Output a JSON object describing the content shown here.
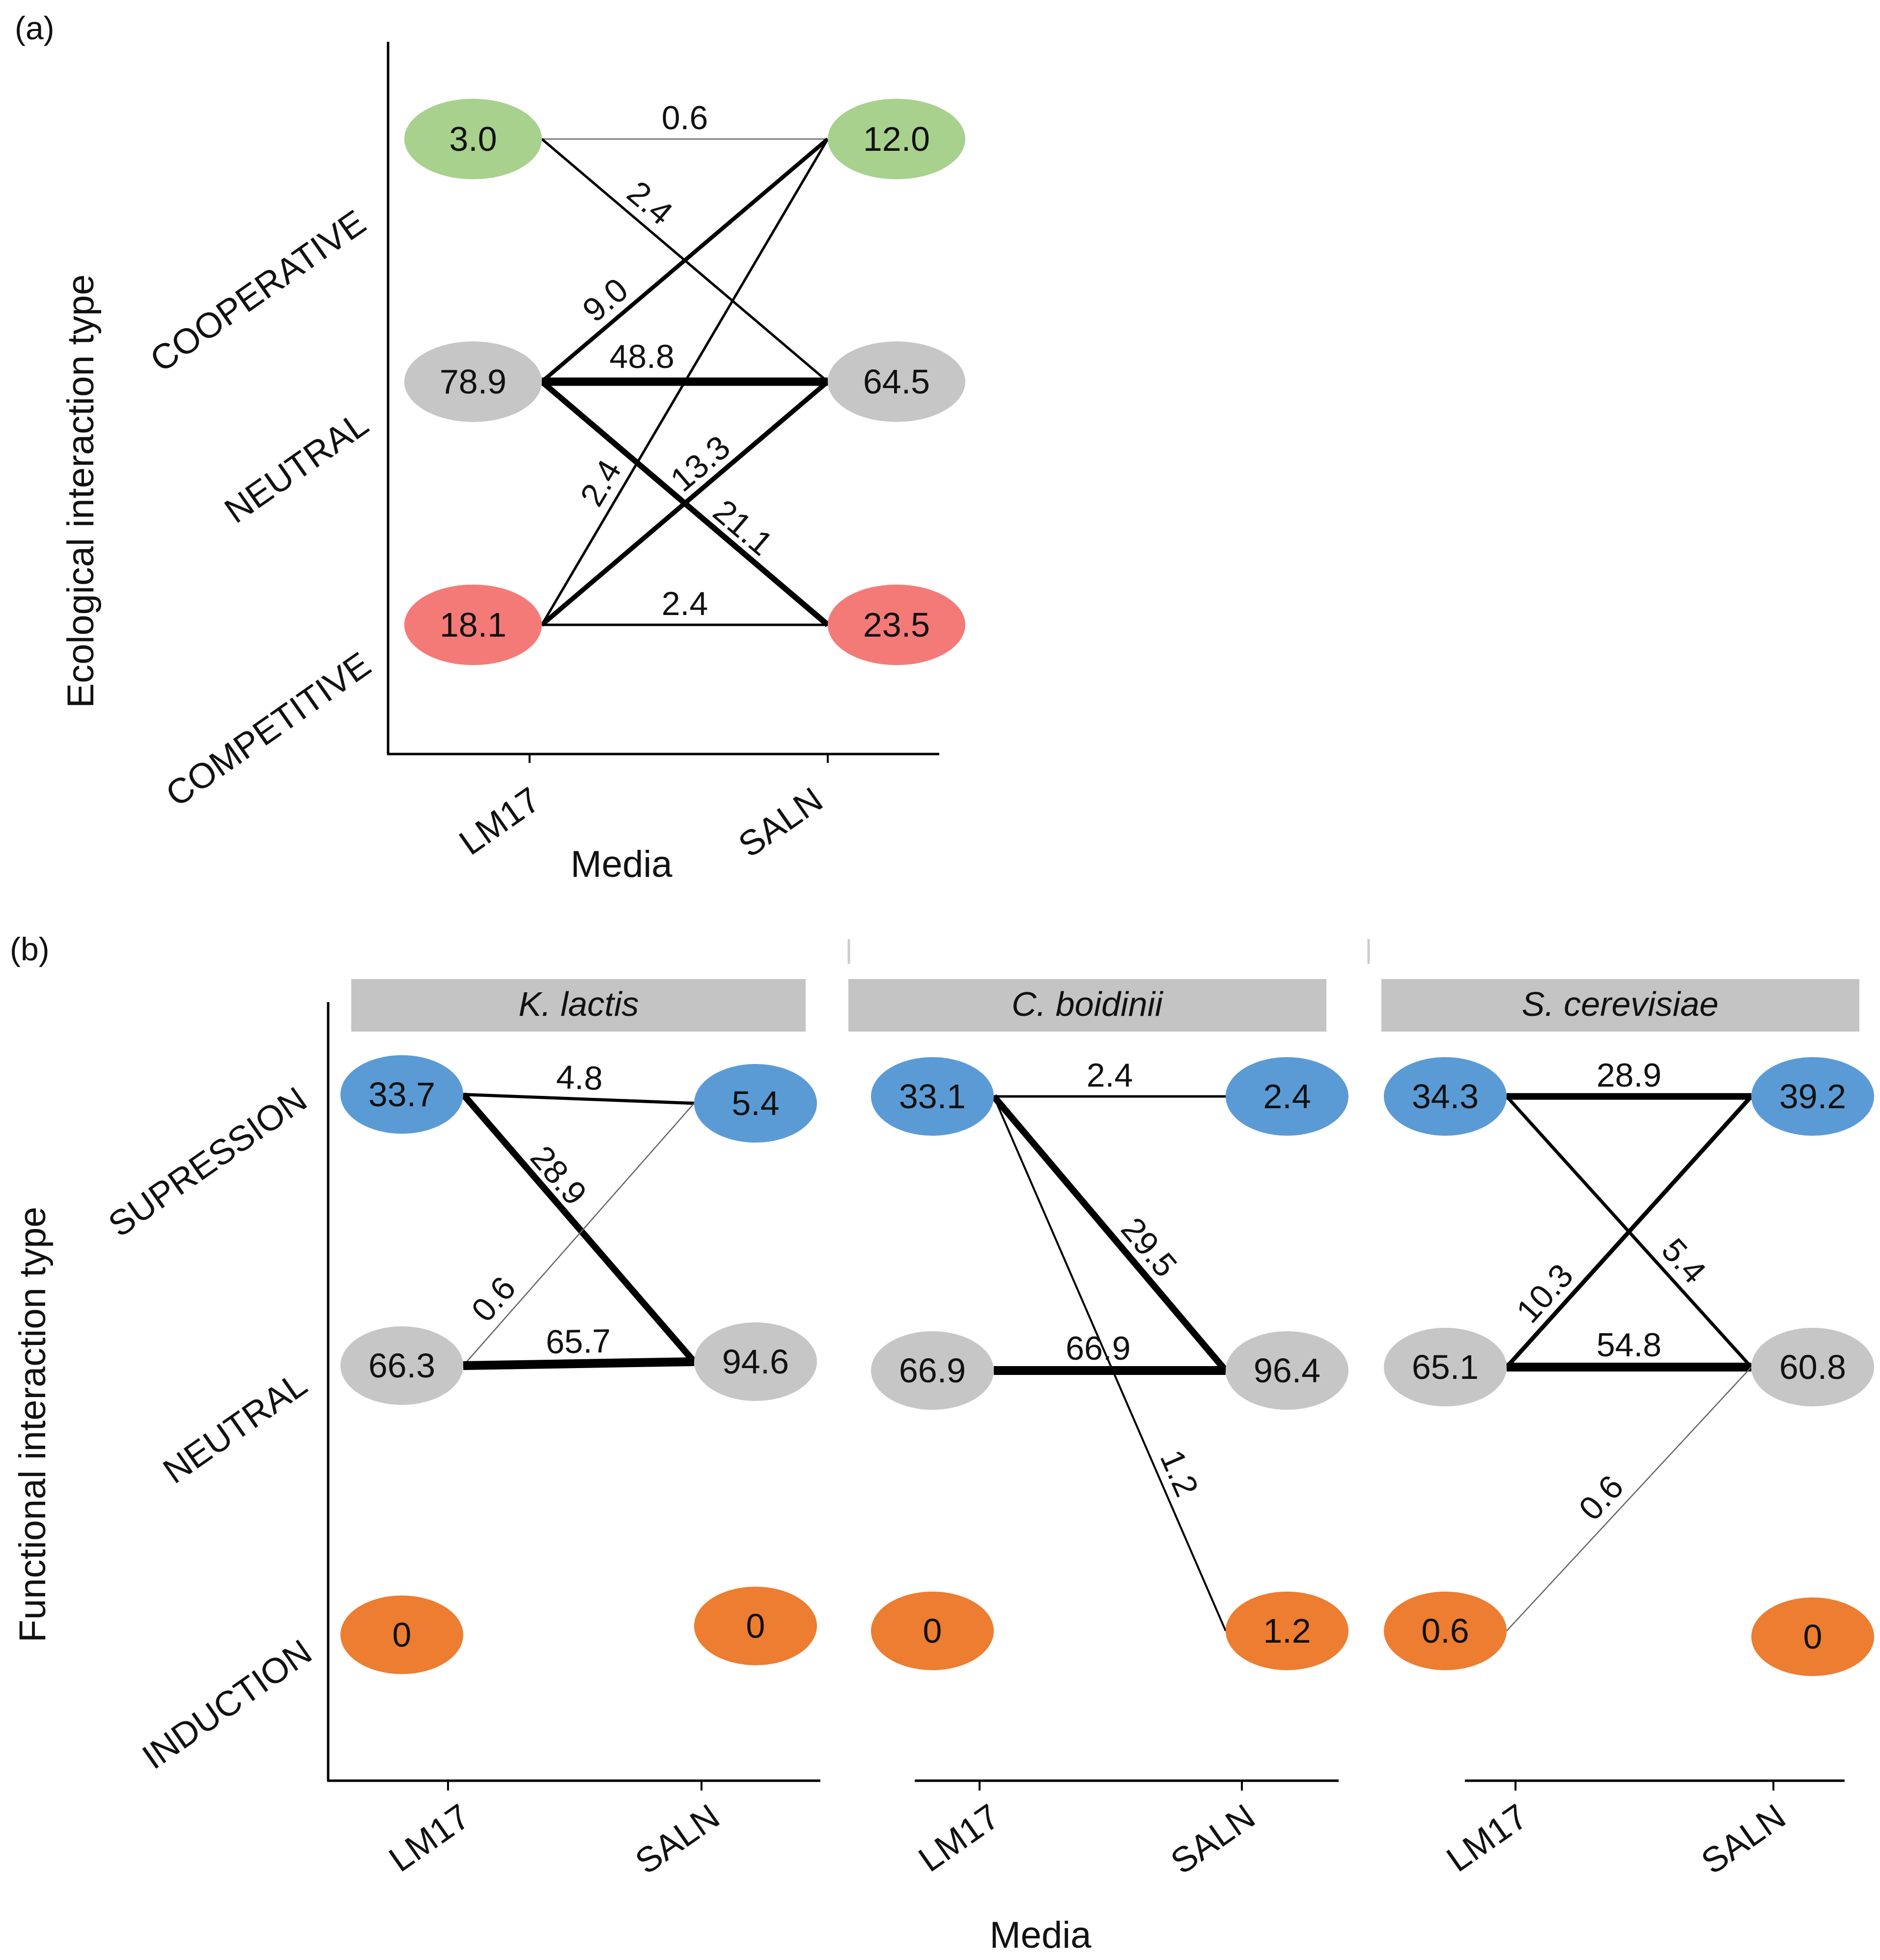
{
  "chart_data": [
    {
      "type": "alluvial-network",
      "panel_label": "(a)",
      "ylabel": "Ecological interaction type",
      "xlabel": "Media",
      "media": [
        "LM17",
        "SALN"
      ],
      "categories": [
        "COOPERATIVE",
        "NEUTRAL",
        "COMPETITIVE"
      ],
      "colors": {
        "COOPERATIVE": "#a8d18d",
        "NEUTRAL": "#c6c6c6",
        "COMPETITIVE": "#f47a78"
      },
      "nodes": {
        "LM17": {
          "COOPERATIVE": "3.0",
          "NEUTRAL": "78.9",
          "COMPETITIVE": "18.1"
        },
        "SALN": {
          "COOPERATIVE": "12.0",
          "NEUTRAL": "64.5",
          "COMPETITIVE": "23.5"
        }
      },
      "flows": [
        {
          "from": "COOPERATIVE",
          "to": "COOPERATIVE",
          "value": 0.6,
          "label": "0.6"
        },
        {
          "from": "COOPERATIVE",
          "to": "NEUTRAL",
          "value": 2.4,
          "label": "2.4"
        },
        {
          "from": "NEUTRAL",
          "to": "COOPERATIVE",
          "value": 9.0,
          "label": "9.0"
        },
        {
          "from": "NEUTRAL",
          "to": "NEUTRAL",
          "value": 48.8,
          "label": "48.8"
        },
        {
          "from": "NEUTRAL",
          "to": "COMPETITIVE",
          "value": 21.1,
          "label": "21.1"
        },
        {
          "from": "COMPETITIVE",
          "to": "COOPERATIVE",
          "value": 2.4,
          "label": "2.4"
        },
        {
          "from": "COMPETITIVE",
          "to": "NEUTRAL",
          "value": 13.3,
          "label": "13.3"
        },
        {
          "from": "COMPETITIVE",
          "to": "COMPETITIVE",
          "value": 2.4,
          "label": "2.4"
        }
      ]
    },
    {
      "type": "alluvial-network",
      "panel_label": "(b)",
      "ylabel": "Functional interaction type",
      "xlabel": "Media",
      "media": [
        "LM17",
        "SALN"
      ],
      "categories": [
        "SUPRESSION",
        "NEUTRAL",
        "INDUCTION"
      ],
      "colors": {
        "SUPRESSION": "#5b9bd5",
        "NEUTRAL": "#c6c6c6",
        "INDUCTION": "#ed7d31"
      },
      "facets": [
        {
          "name": "K. lactis",
          "nodes": {
            "LM17": {
              "SUPRESSION": "33.7",
              "NEUTRAL": "66.3",
              "INDUCTION": "0"
            },
            "SALN": {
              "SUPRESSION": "5.4",
              "NEUTRAL": "94.6",
              "INDUCTION": "0"
            }
          },
          "flows": [
            {
              "from": "SUPRESSION",
              "to": "SUPRESSION",
              "value": 4.8,
              "label": "4.8"
            },
            {
              "from": "SUPRESSION",
              "to": "NEUTRAL",
              "value": 28.9,
              "label": "28.9"
            },
            {
              "from": "NEUTRAL",
              "to": "SUPRESSION",
              "value": 0.6,
              "label": "0.6"
            },
            {
              "from": "NEUTRAL",
              "to": "NEUTRAL",
              "value": 65.7,
              "label": "65.7"
            }
          ]
        },
        {
          "name": "C. boidinii",
          "nodes": {
            "LM17": {
              "SUPRESSION": "33.1",
              "NEUTRAL": "66.9",
              "INDUCTION": "0"
            },
            "SALN": {
              "SUPRESSION": "2.4",
              "NEUTRAL": "96.4",
              "INDUCTION": "1.2"
            }
          },
          "flows": [
            {
              "from": "SUPRESSION",
              "to": "SUPRESSION",
              "value": 2.4,
              "label": "2.4"
            },
            {
              "from": "SUPRESSION",
              "to": "NEUTRAL",
              "value": 29.5,
              "label": "29.5"
            },
            {
              "from": "SUPRESSION",
              "to": "INDUCTION",
              "value": 1.2,
              "label": "1.2"
            },
            {
              "from": "NEUTRAL",
              "to": "NEUTRAL",
              "value": 66.9,
              "label": "66.9"
            }
          ]
        },
        {
          "name": "S. cerevisiae",
          "nodes": {
            "LM17": {
              "SUPRESSION": "34.3",
              "NEUTRAL": "65.1",
              "INDUCTION": "0.6"
            },
            "SALN": {
              "SUPRESSION": "39.2",
              "NEUTRAL": "60.8",
              "INDUCTION": "0"
            }
          },
          "flows": [
            {
              "from": "SUPRESSION",
              "to": "SUPRESSION",
              "value": 28.9,
              "label": "28.9"
            },
            {
              "from": "SUPRESSION",
              "to": "NEUTRAL",
              "value": 5.4,
              "label": "5.4"
            },
            {
              "from": "NEUTRAL",
              "to": "SUPRESSION",
              "value": 10.3,
              "label": "10.3"
            },
            {
              "from": "NEUTRAL",
              "to": "NEUTRAL",
              "value": 54.8,
              "label": "54.8"
            },
            {
              "from": "INDUCTION",
              "to": "NEUTRAL",
              "value": 0.6,
              "label": "0.6"
            }
          ]
        }
      ]
    }
  ]
}
